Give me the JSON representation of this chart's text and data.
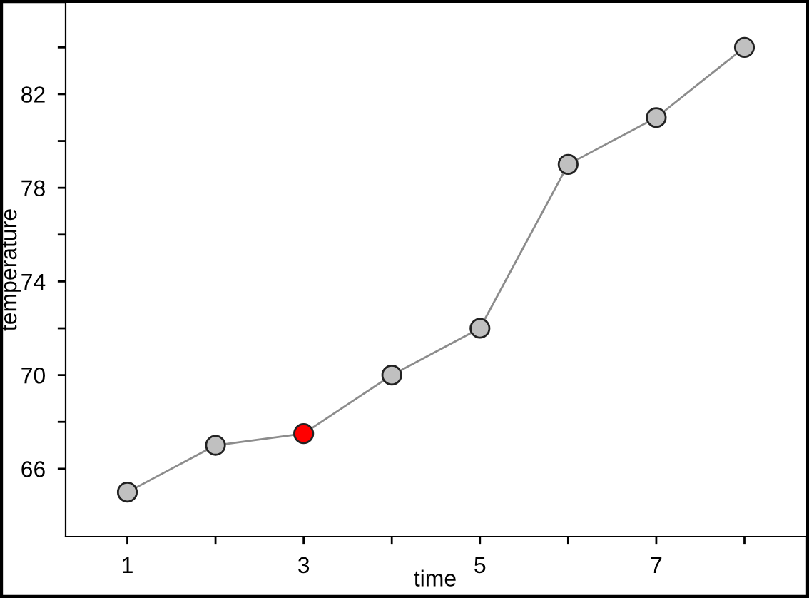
{
  "chart_data": {
    "type": "line",
    "xlabel": "time",
    "ylabel": "temperature",
    "marker": "circle",
    "line_style": "solid",
    "grid": false,
    "x": [
      1,
      2,
      3,
      4,
      5,
      6,
      7,
      8
    ],
    "series": [
      {
        "color": "#8c8c8c",
        "colors": [
          "#c0c0c0",
          "#c0c0c0",
          "#ff0000",
          "#c0c0c0",
          "#c0c0c0",
          "#c0c0c0",
          "#c0c0c0",
          "#c0c0c0"
        ],
        "values": [
          65,
          67,
          67.5,
          70,
          72,
          79,
          81,
          84
        ]
      }
    ],
    "xlim": [
      0.3,
      8.7
    ],
    "ylim": [
      63.1,
      85.9
    ],
    "xticks": [
      1,
      {
        "value": 2,
        "label": null
      },
      3,
      {
        "value": 4,
        "label": null
      },
      5,
      {
        "value": 6,
        "label": null
      },
      7,
      {
        "value": 8,
        "label": null
      }
    ],
    "yticks": [
      66,
      {
        "value": 68,
        "label": null
      },
      70,
      {
        "value": 72,
        "label": null
      },
      74,
      {
        "value": 76,
        "label": null
      },
      78,
      {
        "value": 80,
        "label": null
      },
      82,
      {
        "value": 84,
        "label": null
      }
    ]
  }
}
